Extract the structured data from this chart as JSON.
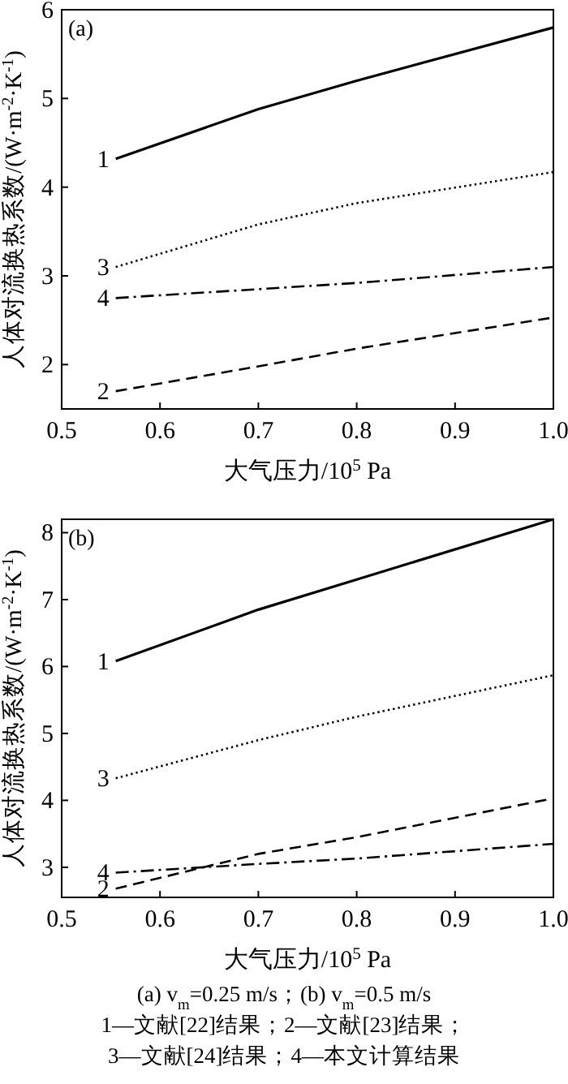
{
  "chart_data": [
    {
      "type": "line",
      "title": "(a)",
      "xlabel": "大气压力/10$^{5}$ Pa",
      "ylabel": "人体对流换热系数/(W·m$^{-2}$·K$^{-1}$)",
      "xlim": [
        0.5,
        1.0
      ],
      "ylim": [
        1.5,
        6
      ],
      "xticks": [
        0.5,
        0.6,
        0.7,
        0.8,
        0.9,
        {
          "value": 1.0,
          "label": "1.0"
        }
      ],
      "yticks": [
        2,
        3,
        4,
        5,
        6
      ],
      "series": [
        {
          "name": "1",
          "color": "#000000",
          "line_style": "solid",
          "x": [
            0.555,
            0.7,
            0.8,
            1.0
          ],
          "values": [
            4.32,
            4.88,
            5.2,
            5.8
          ]
        },
        {
          "name": "2",
          "color": "#000000",
          "line_style": "dashed",
          "x": [
            0.555,
            0.7,
            0.8,
            1.0
          ],
          "values": [
            1.7,
            1.98,
            2.18,
            2.53
          ]
        },
        {
          "name": "3",
          "color": "#000000",
          "line_style": "dotted",
          "x": [
            0.555,
            0.7,
            0.8,
            1.0
          ],
          "values": [
            3.1,
            3.58,
            3.82,
            4.17
          ]
        },
        {
          "name": "4",
          "color": "#000000",
          "line_style": "dashdot",
          "x": [
            0.555,
            0.7,
            0.8,
            1.0
          ],
          "values": [
            2.75,
            2.85,
            2.92,
            3.1
          ]
        }
      ]
    },
    {
      "type": "line",
      "title": "(b)",
      "xlabel": "大气压力/10$^{5}$ Pa",
      "ylabel": "人体对流换热系数/(W·m$^{-2}$·K$^{-1}$)",
      "xlim": [
        0.5,
        1.0
      ],
      "ylim": [
        2.55,
        8.2
      ],
      "xticks": [
        0.5,
        0.6,
        0.7,
        0.8,
        0.9,
        {
          "value": 1.0,
          "label": "1.0"
        }
      ],
      "yticks": [
        3,
        4,
        5,
        6,
        7,
        8
      ],
      "series": [
        {
          "name": "1",
          "color": "#000000",
          "line_style": "solid",
          "x": [
            0.555,
            0.7,
            0.8,
            1.0
          ],
          "values": [
            6.08,
            6.85,
            7.3,
            8.2
          ]
        },
        {
          "name": "2",
          "color": "#000000",
          "line_style": "dashed",
          "x": [
            0.555,
            0.7,
            0.8,
            1.0
          ],
          "values": [
            2.68,
            3.2,
            3.45,
            4.03
          ]
        },
        {
          "name": "3",
          "color": "#000000",
          "line_style": "dotted",
          "x": [
            0.555,
            0.7,
            0.8,
            1.0
          ],
          "values": [
            4.33,
            4.9,
            5.25,
            5.87
          ]
        },
        {
          "name": "4",
          "color": "#000000",
          "line_style": "dashdot",
          "x": [
            0.555,
            0.7,
            0.8,
            1.0
          ],
          "values": [
            2.92,
            3.05,
            3.13,
            3.35
          ]
        }
      ],
      "annotations": [
        "(a) v$_{m}$=0.25 m/s；(b) v$_{m}$=0.5 m/s",
        "1—文献[22]结果；2—文献[23]结果；",
        "3—文献[24]结果；4—本文计算结果"
      ]
    }
  ]
}
